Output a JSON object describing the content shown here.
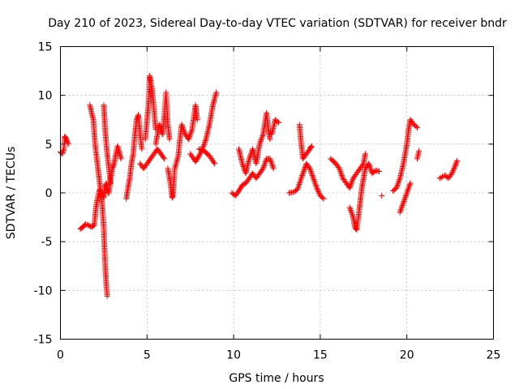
{
  "chart_data": {
    "type": "scatter",
    "title": "Day 210 of 2023, Sidereal Day-to-day VTEC variation (SDTVAR) for receiver bndr",
    "xlabel": "GPS time / hours",
    "ylabel": "SDTVAR / TECUs",
    "xlim": [
      0,
      25
    ],
    "ylim": [
      -15,
      15
    ],
    "xticks": [
      0,
      5,
      10,
      15,
      20,
      25
    ],
    "yticks": [
      -15,
      -10,
      -5,
      0,
      5,
      10,
      15
    ],
    "xtick_labels": [
      "0",
      "5",
      "10",
      "15",
      "20",
      "25"
    ],
    "ytick_labels": [
      "-15",
      "-10",
      "-5",
      "0",
      "5",
      "10",
      "15"
    ],
    "grid": true,
    "marker": "+",
    "color": "#ff0000",
    "series_paths": [
      [
        [
          0.0,
          4.2
        ],
        [
          0.1,
          4.0
        ],
        [
          0.2,
          4.5
        ],
        [
          0.25,
          5.8
        ],
        [
          0.35,
          5.5
        ],
        [
          0.45,
          5.0
        ]
      ],
      [
        [
          1.15,
          -3.7
        ],
        [
          1.3,
          -3.5
        ],
        [
          1.45,
          -3.2
        ],
        [
          1.6,
          -3.3
        ],
        [
          1.8,
          -3.5
        ],
        [
          1.95,
          -3.3
        ],
        [
          2.0,
          -2.5
        ],
        [
          2.05,
          -1.5
        ],
        [
          2.15,
          -0.5
        ],
        [
          2.25,
          0.3
        ],
        [
          2.4,
          0.0
        ],
        [
          2.5,
          -0.5
        ],
        [
          2.55,
          0.5
        ],
        [
          2.65,
          1.0
        ],
        [
          2.75,
          0.0
        ]
      ],
      [
        [
          1.7,
          9.0
        ],
        [
          1.8,
          8.2
        ],
        [
          1.9,
          7.5
        ],
        [
          2.0,
          5.0
        ],
        [
          2.1,
          3.5
        ],
        [
          2.2,
          2.0
        ],
        [
          2.3,
          0.5
        ],
        [
          2.4,
          -1.0
        ],
        [
          2.5,
          -3.5
        ],
        [
          2.55,
          -6.0
        ],
        [
          2.6,
          -8.0
        ],
        [
          2.65,
          -9.5
        ],
        [
          2.7,
          -10.6
        ]
      ],
      [
        [
          2.5,
          9.0
        ],
        [
          2.55,
          7.5
        ],
        [
          2.6,
          6.0
        ],
        [
          2.7,
          4.0
        ],
        [
          2.8,
          2.5
        ],
        [
          2.9,
          1.0
        ]
      ],
      [
        [
          2.8,
          0.0
        ],
        [
          2.9,
          1.5
        ],
        [
          3.0,
          2.5
        ],
        [
          3.1,
          3.0
        ],
        [
          3.2,
          4.0
        ],
        [
          3.3,
          4.8
        ],
        [
          3.4,
          4.2
        ],
        [
          3.5,
          3.5
        ]
      ],
      [
        [
          3.8,
          -0.6
        ],
        [
          3.9,
          0.5
        ],
        [
          4.0,
          1.5
        ],
        [
          4.1,
          3.0
        ],
        [
          4.2,
          4.0
        ],
        [
          4.3,
          6.0
        ],
        [
          4.4,
          7.5
        ],
        [
          4.5,
          8.0
        ],
        [
          4.6,
          6.0
        ],
        [
          4.7,
          4.5
        ]
      ],
      [
        [
          4.6,
          3.0
        ],
        [
          4.8,
          2.5
        ],
        [
          5.0,
          3.0
        ],
        [
          5.2,
          3.5
        ],
        [
          5.4,
          4.0
        ],
        [
          5.6,
          4.5
        ],
        [
          5.8,
          4.0
        ],
        [
          6.0,
          3.5
        ]
      ],
      [
        [
          4.9,
          5.5
        ],
        [
          5.0,
          7.5
        ],
        [
          5.1,
          9.5
        ],
        [
          5.15,
          12.0
        ],
        [
          5.2,
          11.5
        ],
        [
          5.3,
          10.5
        ],
        [
          5.4,
          8.5
        ],
        [
          5.5,
          6.5
        ]
      ],
      [
        [
          5.5,
          5.0
        ],
        [
          5.7,
          7.0
        ],
        [
          5.9,
          6.0
        ],
        [
          6.0,
          8.0
        ],
        [
          6.1,
          10.3
        ],
        [
          6.2,
          7.0
        ],
        [
          6.3,
          5.5
        ]
      ],
      [
        [
          6.2,
          2.5
        ],
        [
          6.35,
          1.0
        ],
        [
          6.45,
          -0.5
        ],
        [
          6.5,
          -0.3
        ],
        [
          6.6,
          2.5
        ],
        [
          6.8,
          3.8
        ],
        [
          6.9,
          5.5
        ],
        [
          7.0,
          7.0
        ],
        [
          7.2,
          6.0
        ],
        [
          7.4,
          5.5
        ],
        [
          7.6,
          6.5
        ],
        [
          7.8,
          9.0
        ],
        [
          7.9,
          7.5
        ]
      ],
      [
        [
          7.5,
          4.0
        ],
        [
          7.8,
          3.2
        ],
        [
          8.0,
          3.8
        ],
        [
          8.2,
          4.5
        ],
        [
          8.4,
          5.5
        ],
        [
          8.6,
          7.0
        ],
        [
          8.8,
          9.0
        ],
        [
          9.0,
          10.3
        ]
      ],
      [
        [
          8.0,
          4.5
        ],
        [
          8.3,
          4.3
        ],
        [
          8.6,
          3.8
        ],
        [
          8.9,
          3.0
        ]
      ],
      [
        [
          9.9,
          0.0
        ],
        [
          10.1,
          -0.3
        ],
        [
          10.3,
          0.2
        ],
        [
          10.5,
          0.8
        ],
        [
          10.7,
          1.0
        ],
        [
          10.9,
          1.5
        ],
        [
          11.1,
          2.0
        ],
        [
          11.3,
          1.5
        ],
        [
          11.5,
          2.0
        ],
        [
          11.7,
          2.5
        ],
        [
          11.9,
          3.5
        ],
        [
          12.1,
          3.5
        ],
        [
          12.3,
          2.5
        ]
      ],
      [
        [
          10.3,
          4.5
        ],
        [
          10.5,
          3.0
        ],
        [
          10.7,
          2.0
        ],
        [
          10.9,
          3.5
        ],
        [
          11.1,
          4.5
        ],
        [
          11.3,
          3.0
        ],
        [
          11.5,
          5.0
        ],
        [
          11.7,
          6.0
        ],
        [
          11.9,
          8.2
        ],
        [
          12.0,
          6.5
        ],
        [
          12.1,
          5.5
        ]
      ],
      [
        [
          12.2,
          6.0
        ],
        [
          12.4,
          7.5
        ],
        [
          12.6,
          7.2
        ]
      ],
      [
        [
          13.2,
          0.0
        ],
        [
          13.5,
          0.1
        ],
        [
          13.7,
          0.4
        ],
        [
          13.9,
          1.5
        ],
        [
          14.1,
          2.5
        ],
        [
          14.2,
          3.0
        ],
        [
          14.4,
          2.5
        ],
        [
          14.6,
          1.5
        ],
        [
          14.8,
          0.5
        ],
        [
          15.0,
          -0.3
        ],
        [
          15.2,
          -0.6
        ]
      ],
      [
        [
          13.8,
          7.0
        ],
        [
          13.9,
          5.0
        ],
        [
          14.0,
          3.5
        ],
        [
          14.2,
          4.0
        ],
        [
          14.4,
          4.5
        ],
        [
          14.5,
          4.8
        ]
      ],
      [
        [
          15.6,
          3.5
        ],
        [
          15.9,
          3.0
        ],
        [
          16.1,
          2.5
        ],
        [
          16.3,
          1.5
        ],
        [
          16.5,
          1.0
        ],
        [
          16.7,
          0.5
        ],
        [
          16.9,
          1.5
        ],
        [
          17.1,
          2.0
        ],
        [
          17.3,
          2.5
        ],
        [
          17.5,
          3.0
        ],
        [
          17.6,
          4.0
        ]
      ],
      [
        [
          16.7,
          -1.5
        ],
        [
          16.9,
          -2.5
        ],
        [
          17.0,
          -3.5
        ],
        [
          17.1,
          -3.8
        ],
        [
          17.2,
          -2.5
        ],
        [
          17.3,
          -1.0
        ],
        [
          17.4,
          0.5
        ],
        [
          17.5,
          1.5
        ],
        [
          17.6,
          2.5
        ],
        [
          17.8,
          3.0
        ],
        [
          18.0,
          2.0
        ],
        [
          18.2,
          2.3
        ],
        [
          18.4,
          2.2
        ]
      ],
      [
        [
          18.55,
          -0.3
        ]
      ],
      [
        [
          19.2,
          0.2
        ],
        [
          19.4,
          0.5
        ],
        [
          19.6,
          1.5
        ],
        [
          19.8,
          3.0
        ],
        [
          20.0,
          5.0
        ],
        [
          20.1,
          6.5
        ],
        [
          20.2,
          7.5
        ],
        [
          20.4,
          7.0
        ],
        [
          20.6,
          6.7
        ]
      ],
      [
        [
          19.6,
          -2.0
        ],
        [
          19.8,
          -1.0
        ],
        [
          20.0,
          0.0
        ],
        [
          20.2,
          1.0
        ]
      ],
      [
        [
          20.6,
          3.5
        ],
        [
          20.7,
          4.3
        ]
      ],
      [
        [
          21.9,
          1.5
        ],
        [
          22.2,
          1.8
        ],
        [
          22.4,
          1.5
        ],
        [
          22.6,
          2.0
        ],
        [
          22.8,
          2.8
        ],
        [
          22.9,
          3.3
        ]
      ]
    ]
  }
}
